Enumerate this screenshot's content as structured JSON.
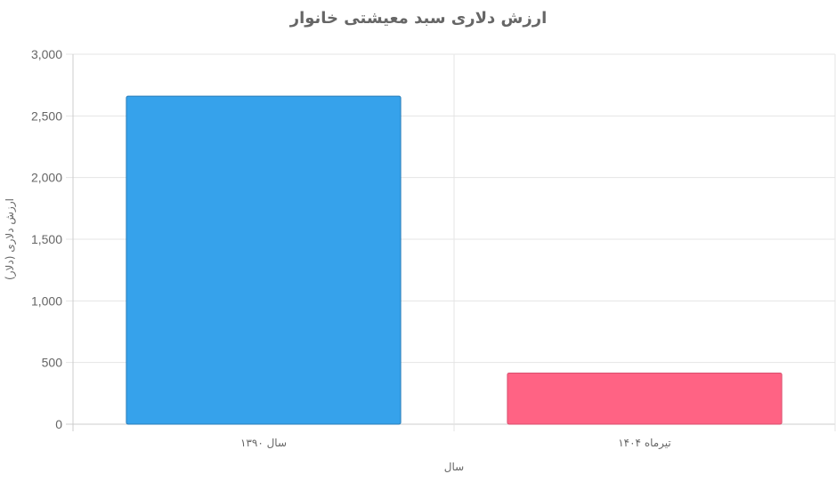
{
  "chart_data": {
    "type": "bar",
    "title": "ارزش دلاری سبد معیشتی خانوار",
    "xlabel": "سال",
    "ylabel": "ارزش دلاری (دلار)",
    "categories": [
      "سال ۱۳۹۰",
      "تیرماه ۱۴۰۴"
    ],
    "values": [
      2660,
      415
    ],
    "ylim": [
      0,
      3000
    ],
    "yticks": [
      0,
      500,
      1000,
      1500,
      2000,
      2500,
      3000
    ],
    "ytick_labels": [
      "0",
      "500",
      "1,000",
      "1,500",
      "2,000",
      "2,500",
      "3,000"
    ],
    "bar_colors": [
      "#36a2eb",
      "#ff6384"
    ],
    "bar_border_colors": [
      "#2a7db8",
      "#d94f6e"
    ],
    "grid": true,
    "legend": "none"
  }
}
